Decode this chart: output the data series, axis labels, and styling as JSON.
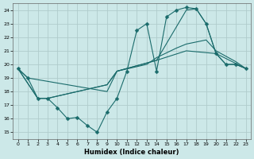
{
  "xlabel": "Humidex (Indice chaleur)",
  "background_color": "#cce8e8",
  "grid_color": "#aaaaaa",
  "line_color": "#1a6b6b",
  "xlim": [
    -0.5,
    23.5
  ],
  "ylim": [
    14.5,
    24.5
  ],
  "yticks": [
    15,
    16,
    17,
    18,
    19,
    20,
    21,
    22,
    23,
    24
  ],
  "xticks": [
    0,
    1,
    2,
    3,
    4,
    5,
    6,
    7,
    8,
    9,
    10,
    11,
    12,
    13,
    14,
    15,
    16,
    17,
    18,
    19,
    20,
    21,
    22,
    23
  ],
  "line1_x": [
    0,
    1,
    2,
    3,
    4,
    5,
    6,
    7,
    8,
    9,
    10,
    11,
    12,
    13,
    14,
    15,
    16,
    17,
    18,
    19,
    20,
    21,
    22,
    23
  ],
  "line1_y": [
    19.7,
    19.0,
    17.5,
    17.5,
    16.8,
    16.0,
    16.1,
    15.5,
    15.0,
    16.5,
    17.5,
    19.5,
    22.5,
    23.0,
    19.5,
    23.5,
    24.0,
    24.2,
    24.1,
    23.0,
    20.8,
    20.0,
    20.0,
    19.7
  ],
  "line2_x": [
    0,
    2,
    3,
    9,
    10,
    13,
    14,
    16,
    17,
    19,
    20,
    22,
    23
  ],
  "line2_y": [
    19.7,
    17.5,
    17.5,
    18.5,
    19.5,
    20.0,
    20.5,
    21.2,
    21.5,
    21.8,
    21.0,
    20.2,
    19.7
  ],
  "line3_x": [
    0,
    2,
    3,
    9,
    10,
    14,
    17,
    20,
    23
  ],
  "line3_y": [
    19.7,
    17.5,
    17.5,
    18.5,
    19.5,
    20.3,
    21.0,
    20.8,
    19.7
  ],
  "line4_x": [
    0,
    1,
    9,
    10,
    14,
    17,
    18,
    19,
    20,
    21,
    22,
    23
  ],
  "line4_y": [
    19.7,
    19.0,
    18.0,
    19.5,
    20.3,
    24.0,
    24.1,
    23.0,
    20.8,
    20.0,
    20.0,
    19.7
  ]
}
